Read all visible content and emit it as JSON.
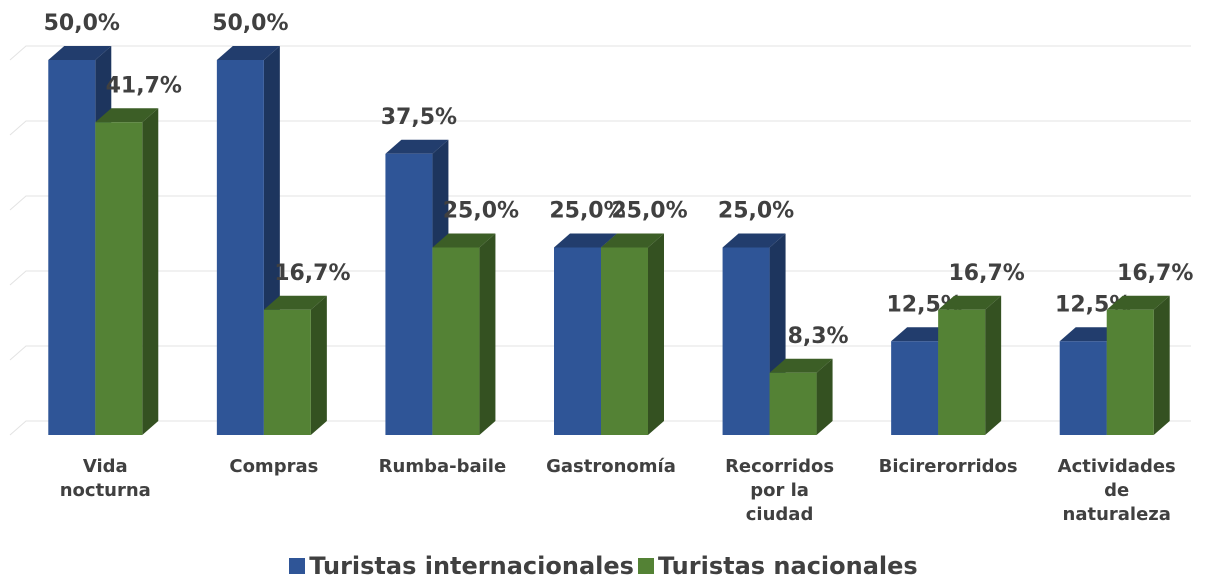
{
  "chart_data": {
    "type": "bar3d",
    "categories": [
      "Vida nocturna",
      "Compras",
      "Rumba-baile",
      "Gastronomía",
      "Recorridos por la ciudad",
      "Bicirerorridos",
      "Actividades de naturaleza"
    ],
    "series": [
      {
        "name": "Turistas internacionales",
        "color": "#2f5597",
        "values": [
          50,
          50,
          37.5,
          25,
          25,
          12.5,
          12.5
        ],
        "value_labels": [
          "50,0%",
          "50,0%",
          "37,5%",
          "25,0%",
          "25,0%",
          "12,5%",
          "12,5%"
        ]
      },
      {
        "name": "Turistas nacionales",
        "color": "#548235",
        "values": [
          41.7,
          16.7,
          25,
          25,
          8.3,
          16.7,
          16.7
        ],
        "value_labels": [
          "41,7%",
          "16,7%",
          "25,0%",
          "25,0%",
          "8,3%",
          "16,7%",
          "16,7%"
        ]
      }
    ],
    "ylim": [
      0,
      50
    ],
    "yticks": [
      0,
      10,
      20,
      30,
      40,
      50
    ],
    "grid": true,
    "legend": "bottom"
  }
}
